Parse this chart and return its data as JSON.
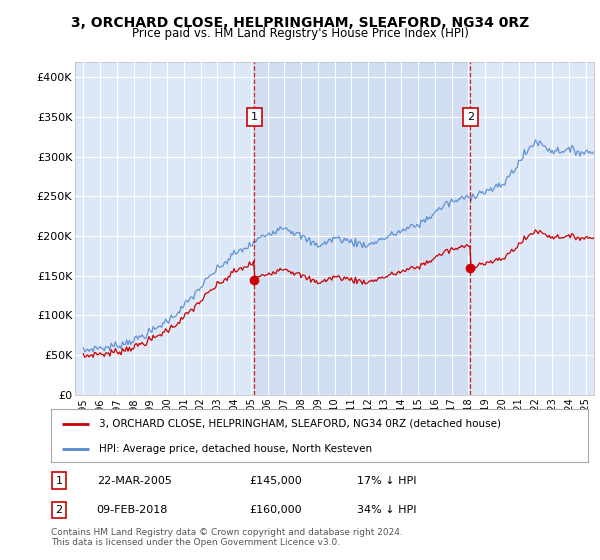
{
  "title": "3, ORCHARD CLOSE, HELPRINGHAM, SLEAFORD, NG34 0RZ",
  "subtitle": "Price paid vs. HM Land Registry's House Price Index (HPI)",
  "ylim": [
    0,
    420000
  ],
  "yticks": [
    0,
    50000,
    100000,
    150000,
    200000,
    250000,
    300000,
    350000,
    400000
  ],
  "ytick_labels": [
    "£0",
    "£50K",
    "£100K",
    "£150K",
    "£200K",
    "£250K",
    "£300K",
    "£350K",
    "£400K"
  ],
  "plot_bg_color": "#dce8f8",
  "hpi_color": "#5588cc",
  "price_color": "#cc0000",
  "shade_color": "#c8d8f0",
  "marker1_date": 2005.22,
  "marker1_price": 145000,
  "marker2_date": 2018.12,
  "marker2_price": 160000,
  "legend_line1": "3, ORCHARD CLOSE, HELPRINGHAM, SLEAFORD, NG34 0RZ (detached house)",
  "legend_line2": "HPI: Average price, detached house, North Kesteven",
  "footer": "Contains HM Land Registry data © Crown copyright and database right 2024.\nThis data is licensed under the Open Government Licence v3.0.",
  "xlim": [
    1994.5,
    2025.5
  ],
  "xticks": [
    1995,
    1996,
    1997,
    1998,
    1999,
    2000,
    2001,
    2002,
    2003,
    2004,
    2005,
    2006,
    2007,
    2008,
    2009,
    2010,
    2011,
    2012,
    2013,
    2014,
    2015,
    2016,
    2017,
    2018,
    2019,
    2020,
    2021,
    2022,
    2023,
    2024,
    2025
  ]
}
